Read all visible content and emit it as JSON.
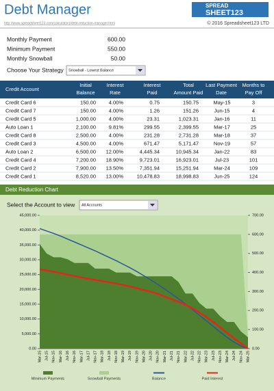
{
  "header": {
    "title": "Debt Manager",
    "url": "http://www.spreadsheet123.com/calculators/debt-reduction-manager.html",
    "logo_top": "SPREAD",
    "logo_bottom": "SHEET123",
    "copyright": "© 2016 Spreadsheet123 LTD"
  },
  "settings": {
    "rows": [
      [
        "Monthly Payment",
        "600.00"
      ],
      [
        "Minimum Payment",
        "550.00"
      ],
      [
        "Monthly Snowball",
        "50.00"
      ]
    ],
    "strategy_label": "Choose Your Strategy",
    "strategy": "Snowball - Lowest Balance"
  },
  "table": {
    "columns": [
      [
        "Credit Account"
      ],
      [
        "Initial",
        "Balance"
      ],
      [
        "Interest",
        "Rate"
      ],
      [
        "Interest",
        "Paid"
      ],
      [
        "Total",
        "Amount Paid"
      ],
      [
        "Last Payment",
        "Date"
      ],
      [
        "Months to",
        "Pay Off"
      ]
    ],
    "rows": [
      [
        "Credit Card 6",
        "150.00",
        "4.00%",
        "0.75",
        "150.75",
        "May-15",
        "3"
      ],
      [
        "Credit Card 7",
        "150.00",
        "4.00%",
        "1.26",
        "151.26",
        "Jun-15",
        "4"
      ],
      [
        "Credit Card 5",
        "1,000.00",
        "4.00%",
        "23.31",
        "1,023.31",
        "Jan-16",
        "11"
      ],
      [
        "Auto Loan 1",
        "2,100.00",
        "9.81%",
        "299.55",
        "2,399.55",
        "Mar-17",
        "25"
      ],
      [
        "Credit Card 8",
        "2,500.00",
        "4.00%",
        "231.28",
        "2,731.28",
        "Mar-18",
        "37"
      ],
      [
        "Credit Card 3",
        "4,500.00",
        "4.00%",
        "671.47",
        "5,171.47",
        "Nov-19",
        "57"
      ],
      [
        "Auto Loan 2",
        "6,500.00",
        "12.00%",
        "4,445.34",
        "10,945.34",
        "Jan-22",
        "83"
      ],
      [
        "Credit Card 4",
        "7,200.00",
        "18.90%",
        "9,723.01",
        "16,923.01",
        "Jul-23",
        "101"
      ],
      [
        "Credit Card 2",
        "7,900.00",
        "13.50%",
        "7,351.94",
        "15,251.94",
        "Mar-24",
        "109"
      ],
      [
        "Credit Card 1",
        "8,520.00",
        "13.00%",
        "10,478.83",
        "18,998.83",
        "Jun-25",
        "124"
      ]
    ]
  },
  "chart_section": {
    "title": "Debt Reduction Chart",
    "select_label": "Select the Account to view",
    "select_value": "All Accounts"
  },
  "chart_data": {
    "type": "area-line",
    "categories": [
      "Mar-15",
      "Jul-15",
      "Nov-15",
      "Mar-16",
      "Jul-16",
      "Nov-16",
      "Mar-17",
      "Jul-17",
      "Nov-17",
      "Mar-18",
      "Jul-18",
      "Nov-18",
      "Mar-19",
      "Jul-19",
      "Nov-19",
      "Mar-20",
      "Jul-20",
      "Nov-20",
      "Mar-21",
      "Jul-21",
      "Nov-21",
      "Mar-22",
      "Jul-22",
      "Nov-22",
      "Mar-23",
      "Jul-23",
      "Nov-23",
      "Mar-24",
      "Jul-24",
      "Nov-24",
      "Mar-25"
    ],
    "series": [
      {
        "name": "Minimum Payments",
        "color": "#4e7f2f",
        "kind": "area",
        "axis": "y2",
        "values": [
          550,
          500,
          480,
          480,
          470,
          450,
          450,
          450,
          420,
          420,
          420,
          400,
          400,
          400,
          380,
          380,
          380,
          380,
          380,
          380,
          350,
          290,
          290,
          240,
          210,
          210,
          170,
          140,
          140,
          90,
          60
        ]
      },
      {
        "name": "Snowball Payments",
        "color": "#a9d08e",
        "kind": "area",
        "axis": "y2",
        "values": [
          50,
          100,
          120,
          120,
          130,
          150,
          150,
          150,
          180,
          180,
          180,
          200,
          200,
          200,
          220,
          220,
          220,
          220,
          220,
          220,
          250,
          310,
          310,
          360,
          390,
          390,
          430,
          460,
          460,
          510,
          0
        ]
      },
      {
        "name": "Balance",
        "color": "#2f5597",
        "kind": "line",
        "values": [
          40520,
          39700,
          38900,
          38000,
          37000,
          36000,
          35000,
          34000,
          33000,
          31900,
          30800,
          29700,
          28500,
          27300,
          26000,
          24600,
          23200,
          21700,
          20100,
          18500,
          16800,
          15000,
          13200,
          11300,
          9400,
          7500,
          5600,
          3800,
          2200,
          900,
          0
        ]
      },
      {
        "name": "Paid Interest",
        "color": "#e3261c",
        "kind": "line",
        "values": [
          26800,
          26400,
          26000,
          25500,
          25000,
          24500,
          24000,
          23600,
          23200,
          22800,
          22400,
          22000,
          21500,
          21000,
          20400,
          19800,
          19200,
          18500,
          17600,
          16700,
          15800,
          14800,
          13600,
          12200,
          10700,
          9000,
          7200,
          5300,
          3500,
          1800,
          0
        ]
      }
    ],
    "ylim": [
      0,
      45000
    ],
    "yticks": [
      {
        "value": 0,
        "label": "0.00"
      },
      {
        "value": 5000,
        "label": "5,000.00"
      },
      {
        "value": 10000,
        "label": "10,000.00"
      },
      {
        "value": 15000,
        "label": "15,000.00"
      },
      {
        "value": 20000,
        "label": "20,000.00"
      },
      {
        "value": 25000,
        "label": "25,000.00"
      },
      {
        "value": 30000,
        "label": "30,000.00"
      },
      {
        "value": 35000,
        "label": "35,000.00"
      },
      {
        "value": 40000,
        "label": "40,000.00"
      },
      {
        "value": 45000,
        "label": "45,000.00"
      }
    ],
    "y2lim": [
      0,
      700
    ],
    "y2ticks": [
      {
        "value": 0,
        "label": "0.00"
      },
      {
        "value": 100,
        "label": "100.00"
      },
      {
        "value": 200,
        "label": "200.00"
      },
      {
        "value": 300,
        "label": "300.00"
      },
      {
        "value": 400,
        "label": "400.00"
      },
      {
        "value": 500,
        "label": "500.00"
      },
      {
        "value": 600,
        "label": "600.00"
      },
      {
        "value": 700,
        "label": "700.00"
      }
    ],
    "stacked": true,
    "grid": false
  }
}
